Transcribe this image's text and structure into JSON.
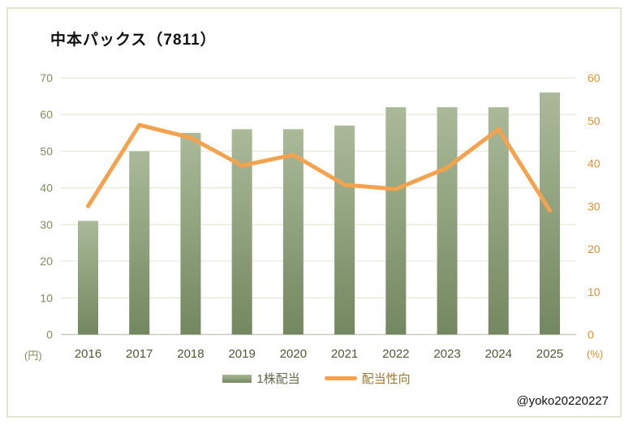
{
  "title": "中本パックス（7811）",
  "watermark": "@yoko20220227",
  "legend": {
    "bar_label": "1株配当",
    "line_label": "配当性向"
  },
  "axes": {
    "left_unit": "(円)",
    "right_unit": "(%)",
    "left_ticks": [
      0,
      10,
      20,
      30,
      40,
      50,
      60,
      70
    ],
    "right_ticks": [
      0,
      10,
      20,
      30,
      40,
      50,
      60
    ]
  },
  "colors": {
    "bar_top": "#aaba99",
    "bar_bottom": "#738760",
    "line": "#f4a24e",
    "gridline": "#e8e8d6",
    "axis_line": "#c9c9ba",
    "left_axis_label": "#7f8e5e",
    "right_axis_label": "#e2902c",
    "x_axis_label": "#4c5a33",
    "legend_bar_text": "#5f6b49",
    "legend_line_text": "#a1762f",
    "frame_border": "#e4e6ce",
    "title_text": "#111111"
  },
  "chart_data": {
    "type": "bar",
    "subtype": "bar+line combo, dual axis",
    "title": "中本パックス（7811）",
    "categories": [
      "2016",
      "2017",
      "2018",
      "2019",
      "2020",
      "2021",
      "2022",
      "2023",
      "2024",
      "2025"
    ],
    "series": [
      {
        "name": "1株配当",
        "type": "bar",
        "axis": "left",
        "unit": "円",
        "values": [
          31,
          50,
          55,
          56,
          56,
          57,
          62,
          62,
          62,
          66
        ]
      },
      {
        "name": "配当性向",
        "type": "line",
        "axis": "right",
        "unit": "%",
        "values": [
          30,
          49,
          46,
          39.5,
          42,
          35,
          34,
          39,
          48,
          29
        ]
      }
    ],
    "xlabel": "",
    "ylabel_left": "(円)",
    "ylabel_right": "(%)",
    "ylim_left": [
      0,
      70
    ],
    "ylim_right": [
      0,
      60
    ],
    "grid": true,
    "legend_position": "bottom"
  }
}
